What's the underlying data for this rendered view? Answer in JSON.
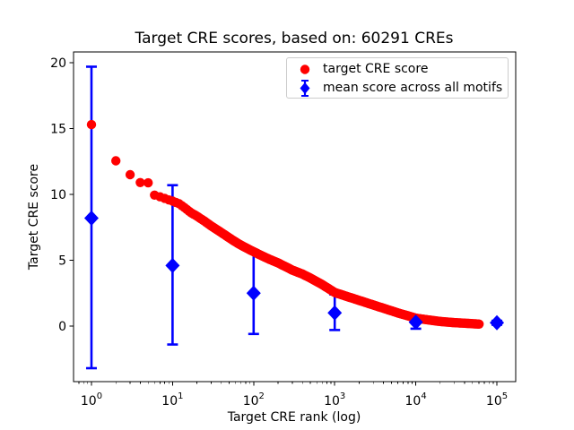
{
  "chart_data": {
    "type": "scatter",
    "title": "Target CRE scores, based on: 60291 CREs",
    "xlabel": "Target CRE rank (log)",
    "ylabel": "Target CRE score",
    "xscale": "log10",
    "xlim_log10": [
      -0.221,
      5.232
    ],
    "ylim": [
      -4.22,
      20.82
    ],
    "xtick_exponents": [
      0,
      1,
      2,
      3,
      4,
      5
    ],
    "yticks": [
      0,
      5,
      10,
      15,
      20
    ],
    "grid": false,
    "legend_position": "upper right",
    "colors": {
      "target": "#ff0000",
      "mean": "#0000ff",
      "axis": "#000000",
      "legend_border": "#cccccc"
    },
    "series": [
      {
        "name": "target CRE score",
        "marker": "circle",
        "color_key": "target",
        "total_points": 60291,
        "points_note": "monotonically decreasing score vs rank; sampled anchor points [rank, score], log-interpolated between anchors",
        "points": [
          [
            1,
            15.3
          ],
          [
            2,
            12.55
          ],
          [
            3,
            11.5
          ],
          [
            4,
            10.9
          ],
          [
            5,
            10.88
          ],
          [
            6,
            9.95
          ],
          [
            7,
            9.82
          ],
          [
            8,
            9.7
          ],
          [
            9,
            9.58
          ],
          [
            10,
            9.5
          ],
          [
            12,
            9.3
          ],
          [
            14,
            9.0
          ],
          [
            17,
            8.6
          ],
          [
            20,
            8.35
          ],
          [
            25,
            7.95
          ],
          [
            30,
            7.6
          ],
          [
            40,
            7.1
          ],
          [
            50,
            6.7
          ],
          [
            65,
            6.25
          ],
          [
            80,
            5.95
          ],
          [
            100,
            5.65
          ],
          [
            130,
            5.3
          ],
          [
            160,
            5.05
          ],
          [
            200,
            4.8
          ],
          [
            250,
            4.5
          ],
          [
            300,
            4.25
          ],
          [
            400,
            3.95
          ],
          [
            500,
            3.65
          ],
          [
            700,
            3.15
          ],
          [
            1000,
            2.55
          ],
          [
            1500,
            2.2
          ],
          [
            2000,
            1.95
          ],
          [
            3000,
            1.6
          ],
          [
            4500,
            1.25
          ],
          [
            6000,
            1.0
          ],
          [
            8000,
            0.78
          ],
          [
            10000,
            0.6
          ],
          [
            15000,
            0.45
          ],
          [
            20000,
            0.35
          ],
          [
            30000,
            0.26
          ],
          [
            45000,
            0.2
          ],
          [
            60291,
            0.15
          ]
        ]
      },
      {
        "name": "mean score across all motifs",
        "marker": "diamond",
        "color_key": "mean",
        "points": [
          {
            "x": 1,
            "mean": 8.2,
            "lo": -3.2,
            "hi": 19.7
          },
          {
            "x": 10,
            "mean": 4.6,
            "lo": -1.4,
            "hi": 10.7
          },
          {
            "x": 100,
            "mean": 2.5,
            "lo": -0.6,
            "hi": 5.7
          },
          {
            "x": 1000,
            "mean": 1.0,
            "lo": -0.3,
            "hi": 2.4
          },
          {
            "x": 10000,
            "mean": 0.3,
            "lo": -0.2,
            "hi": 0.8
          },
          {
            "x": 100000,
            "mean": 0.25,
            "lo": 0.1,
            "hi": 0.4
          }
        ]
      }
    ]
  }
}
